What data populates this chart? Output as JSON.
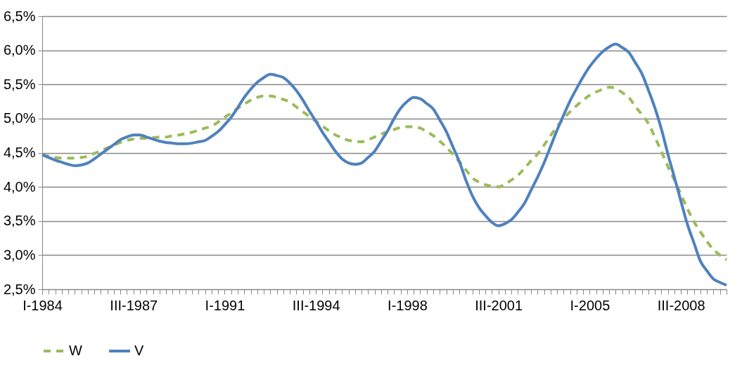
{
  "chart_data": {
    "type": "line",
    "categories": [
      "I-1984",
      null,
      null,
      null,
      null,
      null,
      null,
      null,
      null,
      null,
      null,
      null,
      null,
      null,
      "III-1987",
      null,
      null,
      null,
      null,
      null,
      null,
      null,
      null,
      null,
      null,
      null,
      null,
      null,
      "I-1991",
      null,
      null,
      null,
      null,
      null,
      null,
      null,
      null,
      null,
      null,
      null,
      null,
      null,
      "III-1994",
      null,
      null,
      null,
      null,
      null,
      null,
      null,
      null,
      null,
      null,
      null,
      null,
      null,
      "I-1998",
      null,
      null,
      null,
      null,
      null,
      null,
      null,
      null,
      null,
      null,
      null,
      null,
      null,
      "III-2001",
      null,
      null,
      null,
      null,
      null,
      null,
      null,
      null,
      null,
      null,
      null,
      null,
      null,
      "I-2005",
      null,
      null,
      null,
      null,
      null,
      null,
      null,
      null,
      null,
      null,
      null,
      null,
      null,
      "III-2008",
      null,
      null,
      null,
      null,
      null,
      null,
      null
    ],
    "series": [
      {
        "name": "W",
        "color": "#9bbb59",
        "line_style": "dashed",
        "values": [
          4.47,
          4.45,
          4.43,
          4.42,
          4.42,
          4.42,
          4.43,
          4.45,
          4.49,
          4.53,
          4.57,
          4.61,
          4.65,
          4.68,
          4.7,
          4.71,
          4.71,
          4.72,
          4.73,
          4.73,
          4.75,
          4.76,
          4.78,
          4.8,
          4.83,
          4.86,
          4.89,
          4.95,
          5.02,
          5.08,
          5.15,
          5.21,
          5.27,
          5.31,
          5.33,
          5.33,
          5.31,
          5.28,
          5.24,
          5.17,
          5.1,
          5.03,
          4.96,
          4.89,
          4.82,
          4.76,
          4.72,
          4.68,
          4.67,
          4.66,
          4.69,
          4.73,
          4.77,
          4.81,
          4.84,
          4.87,
          4.88,
          4.88,
          4.86,
          4.81,
          4.75,
          4.67,
          4.58,
          4.48,
          4.37,
          4.25,
          4.13,
          4.07,
          4.03,
          4.01,
          4.0,
          4.04,
          4.1,
          4.17,
          4.27,
          4.38,
          4.48,
          4.61,
          4.75,
          4.88,
          5.0,
          5.1,
          5.19,
          5.27,
          5.34,
          5.39,
          5.43,
          5.46,
          5.44,
          5.38,
          5.31,
          5.18,
          5.06,
          4.93,
          4.73,
          4.52,
          4.3,
          4.1,
          3.89,
          3.68,
          3.49,
          3.34,
          3.2,
          3.08,
          3.0,
          2.93
        ]
      },
      {
        "name": "V",
        "color": "#4f81bd",
        "line_style": "solid",
        "values": [
          4.47,
          4.43,
          4.39,
          4.36,
          4.33,
          4.31,
          4.32,
          4.35,
          4.41,
          4.48,
          4.55,
          4.62,
          4.69,
          4.73,
          4.76,
          4.76,
          4.73,
          4.7,
          4.67,
          4.65,
          4.64,
          4.63,
          4.63,
          4.64,
          4.66,
          4.68,
          4.74,
          4.81,
          4.91,
          5.02,
          5.16,
          5.31,
          5.43,
          5.53,
          5.6,
          5.65,
          5.63,
          5.6,
          5.52,
          5.41,
          5.27,
          5.11,
          4.96,
          4.8,
          4.66,
          4.52,
          4.41,
          4.35,
          4.33,
          4.35,
          4.43,
          4.52,
          4.67,
          4.82,
          5.0,
          5.15,
          5.25,
          5.31,
          5.29,
          5.22,
          5.14,
          4.98,
          4.81,
          4.59,
          4.37,
          4.1,
          3.87,
          3.7,
          3.58,
          3.48,
          3.43,
          3.46,
          3.52,
          3.63,
          3.76,
          3.95,
          4.14,
          4.35,
          4.59,
          4.83,
          5.05,
          5.26,
          5.44,
          5.61,
          5.76,
          5.88,
          5.98,
          6.05,
          6.09,
          6.04,
          5.97,
          5.82,
          5.66,
          5.42,
          5.16,
          4.85,
          4.48,
          4.14,
          3.79,
          3.45,
          3.18,
          2.91,
          2.77,
          2.65,
          2.6,
          2.56
        ]
      }
    ],
    "ylim": [
      2.5,
      6.5
    ],
    "yticks": [
      {
        "value": 2.5,
        "label": "2,5%"
      },
      {
        "value": 3,
        "label": "3,0%"
      },
      {
        "value": 3.5,
        "label": "3,5%"
      },
      {
        "value": 4,
        "label": "4,0%"
      },
      {
        "value": 4.5,
        "label": "4,5%"
      },
      {
        "value": 5,
        "label": "5,0%"
      },
      {
        "value": 5.5,
        "label": "5,5%"
      },
      {
        "value": 6,
        "label": "6,0%"
      },
      {
        "value": 6.5,
        "label": "6,5%"
      }
    ],
    "grid": "y",
    "legend": "bottom",
    "marker": "none"
  }
}
